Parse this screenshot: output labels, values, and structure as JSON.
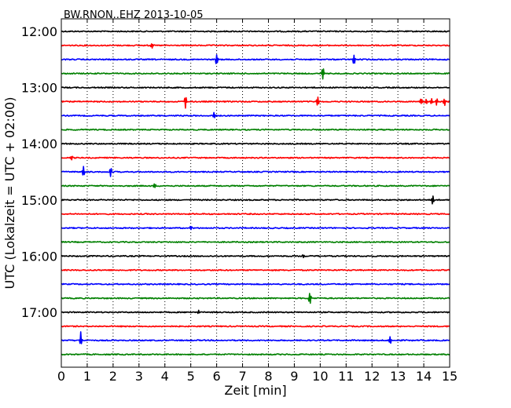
{
  "chart_data": {
    "type": "line",
    "title": "BW.RNON..EHZ 2013-10-05",
    "xlabel": "Zeit  [min]",
    "ylabel": "UTC (Lokalzeit = UTC + 02:00)",
    "xlim": [
      0,
      15
    ],
    "x_ticks": [
      "0",
      "1",
      "2",
      "3",
      "4",
      "5",
      "6",
      "7",
      "8",
      "9",
      "10",
      "11",
      "12",
      "13",
      "14",
      "15"
    ],
    "y_tick_labels": [
      "12:00",
      "13:00",
      "14:00",
      "15:00",
      "16:00",
      "17:00"
    ],
    "grid": "vertical dotted",
    "colors": [
      "#000000",
      "#ff0000",
      "#0000ff",
      "#008000"
    ],
    "rows": [
      {
        "color": "#000000",
        "events": []
      },
      {
        "color": "#ff0000",
        "events": [
          {
            "t": 3.5,
            "amp": 4
          }
        ]
      },
      {
        "color": "#0000ff",
        "events": [
          {
            "t": 6.0,
            "amp": 10
          },
          {
            "t": 11.3,
            "amp": 9
          }
        ]
      },
      {
        "color": "#008000",
        "events": [
          {
            "t": 10.1,
            "amp": 10
          }
        ]
      },
      {
        "color": "#000000",
        "events": []
      },
      {
        "color": "#ff0000",
        "events": [
          {
            "t": 4.8,
            "amp": 10
          },
          {
            "t": 9.9,
            "amp": 7
          },
          {
            "t": 13.9,
            "amp": 5
          },
          {
            "t": 14.1,
            "amp": 5
          },
          {
            "t": 14.3,
            "amp": 5
          },
          {
            "t": 14.5,
            "amp": 5
          },
          {
            "t": 14.8,
            "amp": 6
          }
        ]
      },
      {
        "color": "#0000ff",
        "events": [
          {
            "t": 5.9,
            "amp": 5
          }
        ]
      },
      {
        "color": "#008000",
        "events": []
      },
      {
        "color": "#000000",
        "events": []
      },
      {
        "color": "#ff0000",
        "events": [
          {
            "t": 0.4,
            "amp": 3
          }
        ]
      },
      {
        "color": "#0000ff",
        "events": [
          {
            "t": 0.85,
            "amp": 9
          },
          {
            "t": 1.9,
            "amp": 7
          }
        ]
      },
      {
        "color": "#008000",
        "events": [
          {
            "t": 3.6,
            "amp": 4
          }
        ]
      },
      {
        "color": "#000000",
        "events": [
          {
            "t": 14.35,
            "amp": 7
          }
        ]
      },
      {
        "color": "#ff0000",
        "events": []
      },
      {
        "color": "#0000ff",
        "events": [
          {
            "t": 5.0,
            "amp": 3
          }
        ]
      },
      {
        "color": "#008000",
        "events": []
      },
      {
        "color": "#000000",
        "events": [
          {
            "t": 9.35,
            "amp": 4
          }
        ]
      },
      {
        "color": "#ff0000",
        "events": []
      },
      {
        "color": "#0000ff",
        "events": []
      },
      {
        "color": "#008000",
        "events": [
          {
            "t": 9.6,
            "amp": 10
          }
        ]
      },
      {
        "color": "#000000",
        "events": [
          {
            "t": 5.3,
            "amp": 3
          }
        ]
      },
      {
        "color": "#ff0000",
        "events": []
      },
      {
        "color": "#0000ff",
        "events": [
          {
            "t": 0.75,
            "amp": 11
          },
          {
            "t": 12.7,
            "amp": 6
          }
        ]
      },
      {
        "color": "#008000",
        "events": []
      }
    ]
  }
}
